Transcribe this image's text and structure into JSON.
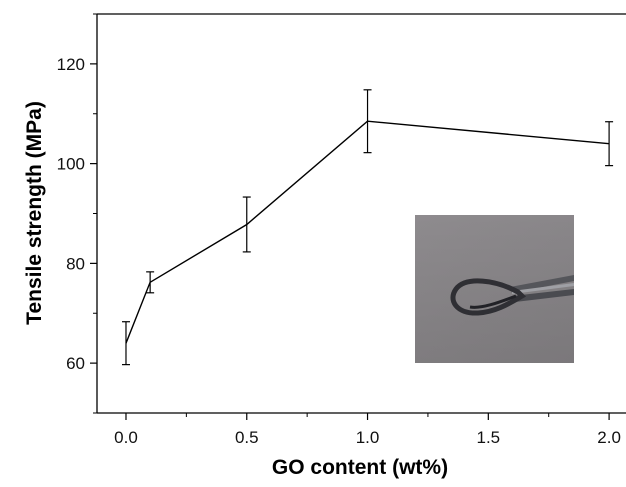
{
  "chart_data": {
    "type": "line",
    "title": "",
    "xlabel": "GO content (wt%)",
    "ylabel": "Tensile strength (MPa)",
    "xlim": [
      -0.12,
      2.07
    ],
    "ylim": [
      50,
      130
    ],
    "x_ticks": [
      0.0,
      0.5,
      1.0,
      1.5,
      2.0
    ],
    "x_tick_labels": [
      "0.0",
      "0.5",
      "1.0",
      "1.5",
      "2.0"
    ],
    "y_ticks": [
      60,
      80,
      100,
      120
    ],
    "y_tick_labels": [
      "60",
      "80",
      "100",
      "120"
    ],
    "grid": false,
    "legend": "none",
    "line_color": "#000000",
    "series": [
      {
        "x": [
          0.0,
          0.1,
          0.5,
          1.0,
          2.0
        ],
        "y": [
          64.0,
          76.2,
          87.8,
          108.5,
          104.0
        ],
        "err": [
          4.3,
          2.1,
          5.5,
          6.3,
          4.4
        ]
      }
    ],
    "inset_photo": {
      "background_color": "#8a878a",
      "object_color": "#3a3a3f"
    }
  }
}
